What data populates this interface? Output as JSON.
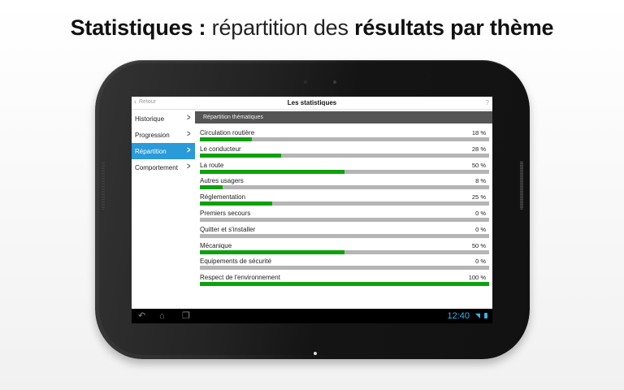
{
  "headline": {
    "part1": "Statistiques :",
    "part2": " répartition des ",
    "part3": "résultats par thème"
  },
  "app": {
    "back_label": "Retour",
    "back_icon": "chevron-left-icon",
    "title": "Les statistiques",
    "help_label": "?"
  },
  "sidebar": {
    "items": [
      {
        "label": "Historique",
        "active": false
      },
      {
        "label": "Progression",
        "active": false
      },
      {
        "label": "Répartition",
        "active": true
      },
      {
        "label": "Comportement",
        "active": false
      }
    ],
    "arrow_glyph": ">"
  },
  "content": {
    "header": "Répartition thématiques",
    "rows": [
      {
        "label": "Circulation routière",
        "value": 18,
        "display": "18 %"
      },
      {
        "label": "Le conducteur",
        "value": 28,
        "display": "28 %"
      },
      {
        "label": "La route",
        "value": 50,
        "display": "50 %"
      },
      {
        "label": "Autres usagers",
        "value": 8,
        "display": "8 %"
      },
      {
        "label": "Réglementation",
        "value": 25,
        "display": "25 %"
      },
      {
        "label": "Premiers secours",
        "value": 0,
        "display": "0 %"
      },
      {
        "label": "Quitter et s'installer",
        "value": 0,
        "display": "0 %"
      },
      {
        "label": "Mécanique",
        "value": 50,
        "display": "50 %"
      },
      {
        "label": "Equipements de sécurité",
        "value": 0,
        "display": "0 %"
      },
      {
        "label": "Respect de l'environnement",
        "value": 100,
        "display": "100 %"
      }
    ]
  },
  "system_bar": {
    "back_icon": "↶",
    "home_icon": "⌂",
    "recent_icon": "❐",
    "time": "12:40",
    "wifi_icon": "◥"
  },
  "colors": {
    "accent_blue": "#2a9ad9",
    "bar_fill_green": "#0da10d",
    "bar_track_gray": "#b5b5b5",
    "status_blue": "#3ab0e6",
    "section_header": "#555555"
  }
}
